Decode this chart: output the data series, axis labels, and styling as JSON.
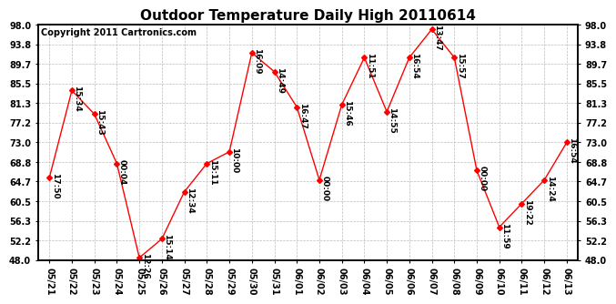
{
  "title": "Outdoor Temperature Daily High 20110614",
  "copyright": "Copyright 2011 Cartronics.com",
  "dates": [
    "05/21",
    "05/22",
    "05/23",
    "05/24",
    "05/25",
    "05/26",
    "05/27",
    "05/28",
    "05/29",
    "05/30",
    "05/31",
    "06/01",
    "06/02",
    "06/03",
    "06/04",
    "06/05",
    "06/06",
    "06/07",
    "06/08",
    "06/09",
    "06/10",
    "06/11",
    "06/12",
    "06/13"
  ],
  "values": [
    65.5,
    84.0,
    79.0,
    68.5,
    48.5,
    52.5,
    62.5,
    68.5,
    71.0,
    92.0,
    88.0,
    80.5,
    65.0,
    81.0,
    91.0,
    79.5,
    91.0,
    97.0,
    91.0,
    67.0,
    55.0,
    60.0,
    65.0,
    73.0
  ],
  "labels": [
    "17:50",
    "15:34",
    "15:43",
    "00:04",
    "12:26",
    "15:14",
    "12:34",
    "15:11",
    "10:00",
    "16:09",
    "14:49",
    "16:47",
    "00:00",
    "15:46",
    "11:51",
    "14:55",
    "16:54",
    "13:47",
    "15:57",
    "00:00",
    "11:59",
    "19:22",
    "14:24",
    "16:54"
  ],
  "yticks": [
    48.0,
    52.2,
    56.3,
    60.5,
    64.7,
    68.8,
    73.0,
    77.2,
    81.3,
    85.5,
    89.7,
    93.8,
    98.0
  ],
  "ymin": 48.0,
  "ymax": 98.0,
  "line_color": "red",
  "marker_color": "red",
  "background_color": "#ffffff",
  "grid_color": "#bbbbbb",
  "title_fontsize": 11,
  "label_fontsize": 6.5,
  "copyright_fontsize": 7,
  "tick_fontsize": 7
}
